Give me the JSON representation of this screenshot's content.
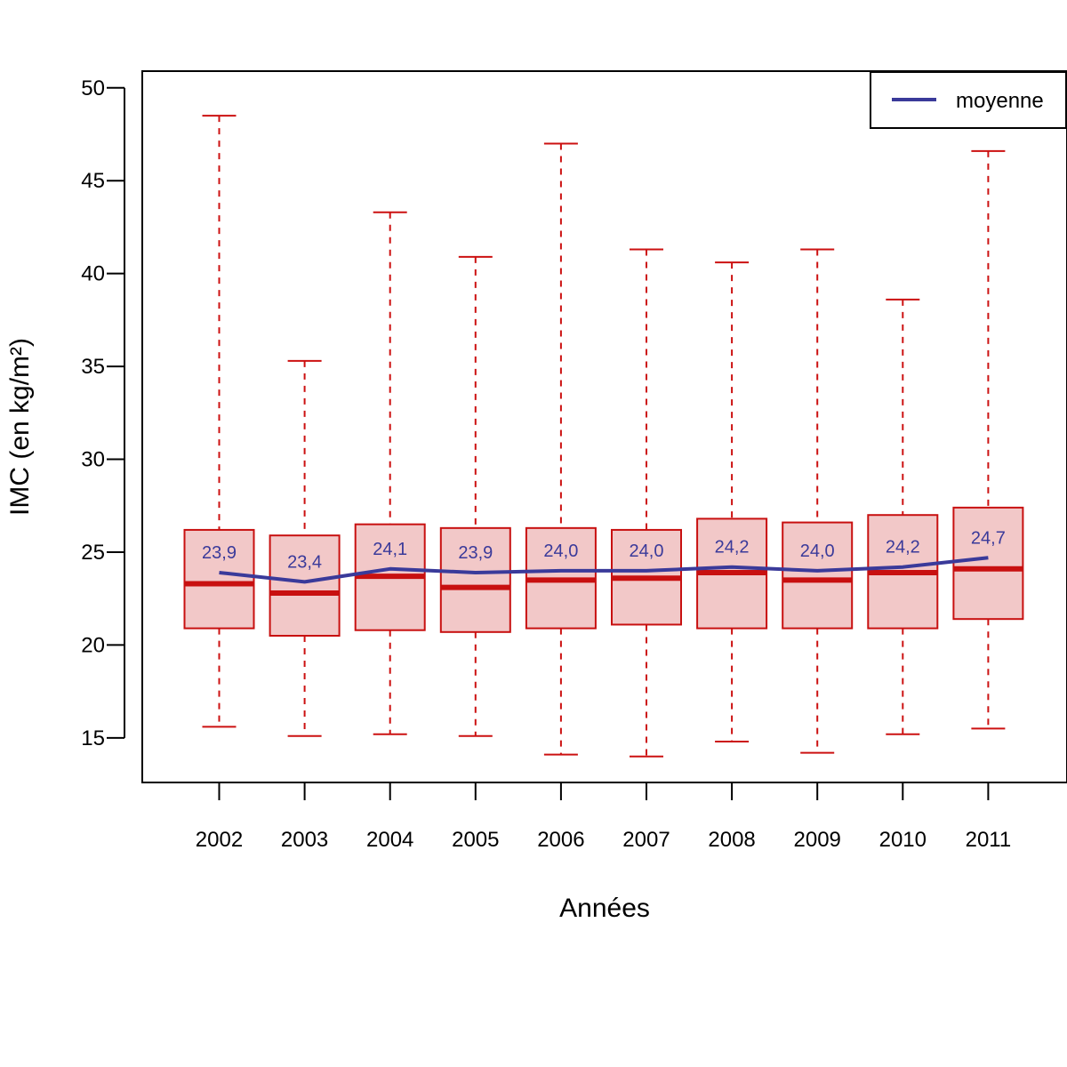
{
  "chart_data": {
    "type": "box",
    "xlabel": "Années",
    "ylabel": "IMC (en kg/m²)",
    "ylim": [
      12.6,
      50.9
    ],
    "yticks": [
      15,
      20,
      25,
      30,
      35,
      40,
      45,
      50
    ],
    "categories": [
      "2002",
      "2003",
      "2004",
      "2005",
      "2006",
      "2007",
      "2008",
      "2009",
      "2010",
      "2011"
    ],
    "boxes": [
      {
        "min": 15.6,
        "q1": 20.9,
        "median": 23.3,
        "q3": 26.2,
        "max": 48.5
      },
      {
        "min": 15.1,
        "q1": 20.5,
        "median": 22.8,
        "q3": 25.9,
        "max": 35.3
      },
      {
        "min": 15.2,
        "q1": 20.8,
        "median": 23.7,
        "q3": 26.5,
        "max": 43.3
      },
      {
        "min": 15.1,
        "q1": 20.7,
        "median": 23.1,
        "q3": 26.3,
        "max": 40.9
      },
      {
        "min": 14.1,
        "q1": 20.9,
        "median": 23.5,
        "q3": 26.3,
        "max": 47.0
      },
      {
        "min": 14.0,
        "q1": 21.1,
        "median": 23.6,
        "q3": 26.2,
        "max": 41.3
      },
      {
        "min": 14.8,
        "q1": 20.9,
        "median": 23.9,
        "q3": 26.8,
        "max": 40.6
      },
      {
        "min": 14.2,
        "q1": 20.9,
        "median": 23.5,
        "q3": 26.6,
        "max": 41.3
      },
      {
        "min": 15.2,
        "q1": 20.9,
        "median": 23.9,
        "q3": 27.0,
        "max": 38.6
      },
      {
        "min": 15.5,
        "q1": 21.4,
        "median": 24.1,
        "q3": 27.4,
        "max": 46.6
      }
    ],
    "series": [
      {
        "name": "moyenne",
        "values": [
          23.9,
          23.4,
          24.1,
          23.9,
          24.0,
          24.0,
          24.2,
          24.0,
          24.2,
          24.7
        ],
        "labels": [
          "23,9",
          "23,4",
          "24,1",
          "23,9",
          "24,0",
          "24,0",
          "24,2",
          "24,0",
          "24,2",
          "24,7"
        ]
      }
    ],
    "legend": {
      "position": "top-right",
      "entries": [
        "moyenne"
      ]
    },
    "grid": false,
    "colors": {
      "box_border": "#c81010",
      "box_fill": "#f2c8c8",
      "median": "#c81010",
      "whisker": "#cc1111",
      "mean_line": "#3a3a9a",
      "mean_label": "#3a3a9a",
      "axis": "#000000"
    }
  }
}
